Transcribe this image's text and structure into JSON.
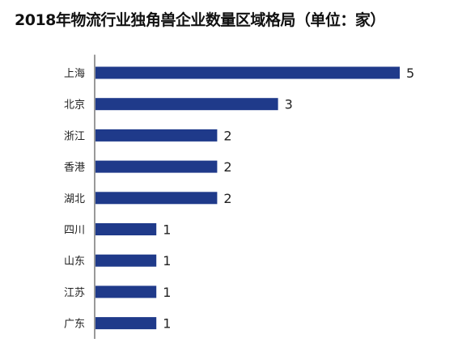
{
  "chart_data": {
    "type": "bar",
    "orientation": "horizontal",
    "title": "2018年物流行业独角兽企业数量区域格局（单位：家）",
    "categories": [
      "上海",
      "北京",
      "浙江",
      "香港",
      "湖北",
      "四川",
      "山东",
      "江苏",
      "广东"
    ],
    "values": [
      5,
      3,
      2,
      2,
      2,
      1,
      1,
      1,
      1
    ],
    "xlabel": "",
    "ylabel": "",
    "xlim": [
      0,
      5
    ],
    "grid": false,
    "legend": "none",
    "bar_color": "#1f3a8a",
    "axis_color": "#333333"
  }
}
